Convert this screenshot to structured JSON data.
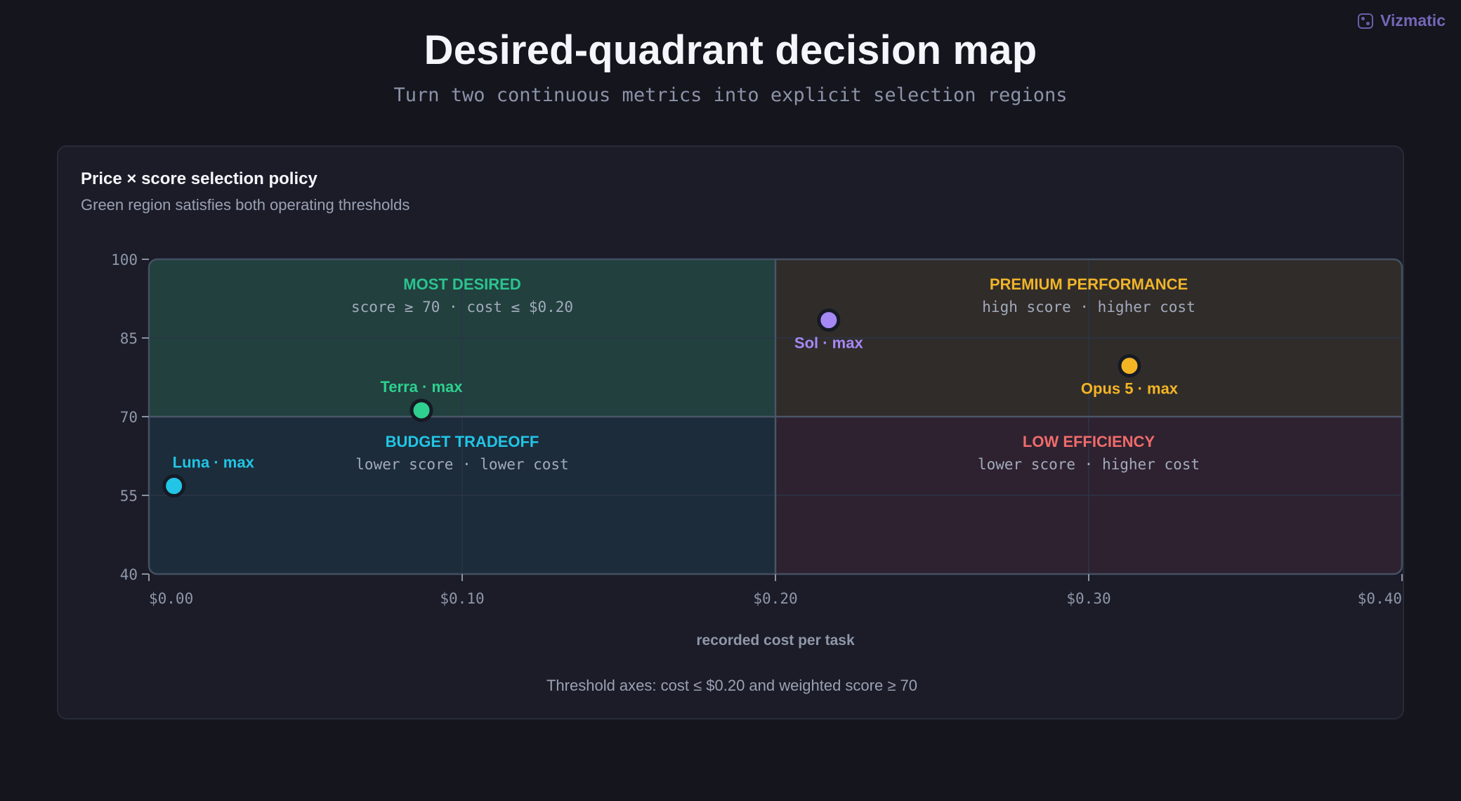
{
  "brand": {
    "name": "Vizmatic"
  },
  "header": {
    "title": "Desired-quadrant decision map",
    "subtitle": "Turn two continuous metrics into explicit selection regions"
  },
  "card": {
    "title": "Price × score selection policy",
    "subtitle": "Green region satisfies both operating thresholds",
    "footnote": "Threshold axes: cost ≤ $0.20 and weighted score ≥ 70"
  },
  "chart_data": {
    "type": "scatter",
    "xlabel": "recorded cost per task",
    "ylabel": "",
    "xlim": [
      0,
      0.4
    ],
    "ylim": [
      40,
      100
    ],
    "x_ticks": [
      0.0,
      0.1,
      0.2,
      0.3,
      0.4
    ],
    "x_tick_labels": [
      "$0.00",
      "$0.10",
      "$0.20",
      "$0.30",
      "$0.40"
    ],
    "y_ticks": [
      40,
      55,
      70,
      85,
      100
    ],
    "y_tick_labels": [
      "40",
      "55",
      "70",
      "85",
      "100"
    ],
    "grid": true,
    "thresholds": {
      "x": 0.2,
      "y": 70
    },
    "quadrants": [
      {
        "id": "most-desired",
        "title": "MOST DESIRED",
        "desc": "score ≥ 70 · cost ≤ $0.20",
        "x_range": [
          0,
          0.2
        ],
        "y_range": [
          70,
          100
        ],
        "color": "#2bc48f",
        "fill": "#21403e"
      },
      {
        "id": "premium-performance",
        "title": "PREMIUM PERFORMANCE",
        "desc": "high score · higher cost",
        "x_range": [
          0.2,
          0.4
        ],
        "y_range": [
          70,
          100
        ],
        "color": "#f0b429",
        "fill": "#302c2a"
      },
      {
        "id": "budget-tradeoff",
        "title": "BUDGET TRADEOFF",
        "desc": "lower score · lower cost",
        "x_range": [
          0,
          0.2
        ],
        "y_range": [
          40,
          70
        ],
        "color": "#22c5e6",
        "fill": "#1c2c3a"
      },
      {
        "id": "low-efficiency",
        "title": "LOW EFFICIENCY",
        "desc": "lower score · higher cost",
        "x_range": [
          0.2,
          0.4
        ],
        "y_range": [
          40,
          70
        ],
        "color": "#f06b6b",
        "fill": "#2e2230"
      }
    ],
    "points": [
      {
        "label": "Terra · max",
        "x": 0.087,
        "y": 71.2,
        "color": "#2fd08f",
        "label_pos": "above"
      },
      {
        "label": "Luna · max",
        "x": 0.008,
        "y": 56.8,
        "color": "#22c5e6",
        "label_pos": "above-right"
      },
      {
        "label": "Sol · max",
        "x": 0.217,
        "y": 88.4,
        "color": "#a688f5",
        "label_pos": "below"
      },
      {
        "label": "Opus 5 · max",
        "x": 0.313,
        "y": 79.7,
        "color": "#f4b524",
        "label_pos": "below"
      }
    ]
  }
}
